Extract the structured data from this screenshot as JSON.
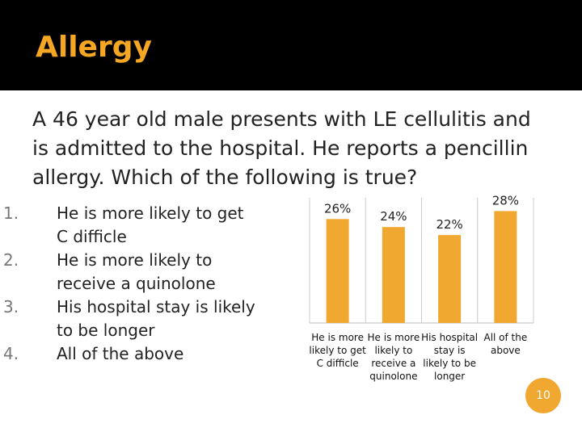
{
  "header": {
    "title": "Allergy"
  },
  "question": "A 46 year old male presents with LE cellulitis and is admitted to the hospital. He reports a pencillin allergy. Which of the following is true?",
  "options": [
    {
      "number": "1.",
      "text": "He is more likely to get C difficle"
    },
    {
      "number": "2.",
      "text": "He is more likely to receive a quinolone"
    },
    {
      "number": "3.",
      "text": "His hospital stay is likely to be longer"
    },
    {
      "number": "4.",
      "text": "All of the above"
    }
  ],
  "chart_data": {
    "type": "bar",
    "categories": [
      "He is more likely to get C difficle",
      "He is more likely to receive a quinolone",
      "His hospital stay is likely to be longer",
      "All of the above"
    ],
    "values": [
      26,
      24,
      22,
      28
    ],
    "value_labels": [
      "26%",
      "24%",
      "22%",
      "28%"
    ],
    "color": "#f0a830"
  },
  "page_number": "10"
}
